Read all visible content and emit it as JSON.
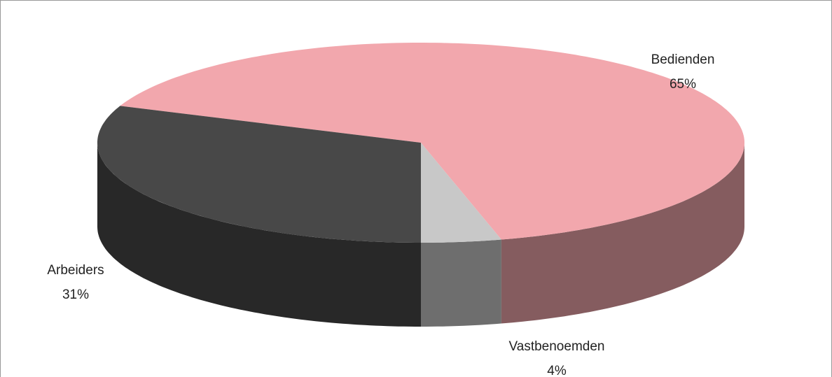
{
  "chart_data": {
    "type": "pie",
    "categories": [
      "Bedienden",
      "Vastbenoemden",
      "Arbeiders"
    ],
    "values": [
      65,
      4,
      31
    ],
    "value_labels": [
      "65%",
      "4%",
      "31%"
    ],
    "colors": [
      "#f2a7ad",
      "#c8c8c8",
      "#484848"
    ]
  }
}
